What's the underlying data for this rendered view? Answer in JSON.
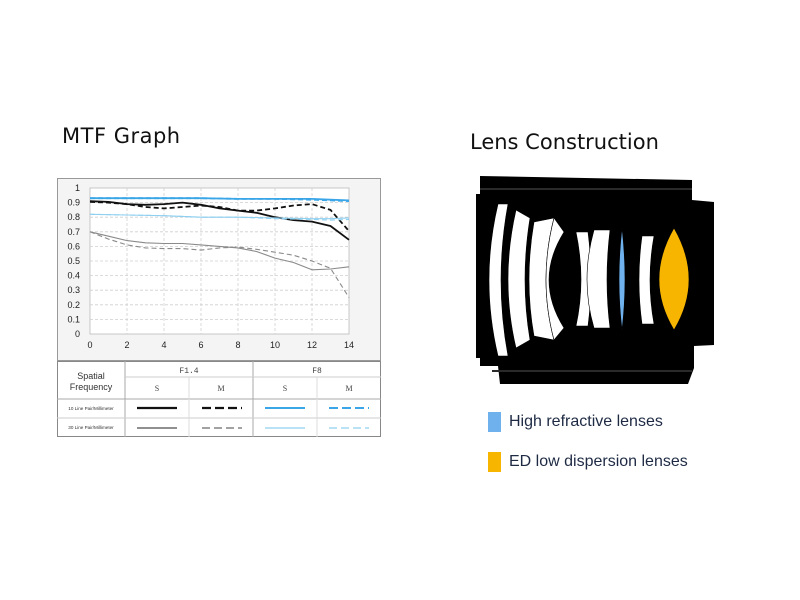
{
  "mtf_title": "MTF Graph",
  "lens_title": "Lens Construction",
  "colors": {
    "f14": "#111111",
    "f8": "#3aa6e8",
    "high_refractive": "#6fb1ec",
    "ed_low_dispersion": "#f7b500",
    "lens_body": "#000000"
  },
  "chart_data": {
    "type": "line",
    "xlim": [
      0,
      14
    ],
    "ylim": [
      0,
      1
    ],
    "x_ticks": [
      "0",
      "2",
      "4",
      "6",
      "8",
      "10",
      "12",
      "14"
    ],
    "y_ticks": [
      "0",
      "0.1",
      "0.2",
      "0.3",
      "0.4",
      "0.5",
      "0.6",
      "0.7",
      "0.8",
      "0.9",
      "1"
    ],
    "grid": true,
    "series": [
      {
        "aperture": "F1.4",
        "orientation": "S",
        "freq": "10 Line Pair/Millimeter",
        "color": "#111111",
        "dash": "solid",
        "weight": "bold",
        "x": [
          0,
          1,
          2,
          3,
          4,
          5,
          6,
          7,
          8,
          9,
          10,
          11,
          12,
          13,
          14
        ],
        "y": [
          0.91,
          0.905,
          0.89,
          0.885,
          0.89,
          0.9,
          0.885,
          0.86,
          0.845,
          0.83,
          0.8,
          0.78,
          0.77,
          0.74,
          0.645
        ]
      },
      {
        "aperture": "F1.4",
        "orientation": "M",
        "freq": "10 Line Pair/Millimeter",
        "color": "#111111",
        "dash": "dashed",
        "weight": "bold",
        "x": [
          0,
          1,
          2,
          3,
          4,
          5,
          6,
          7,
          8,
          9,
          10,
          11,
          12,
          13,
          14
        ],
        "y": [
          0.905,
          0.9,
          0.89,
          0.87,
          0.86,
          0.87,
          0.88,
          0.87,
          0.845,
          0.845,
          0.86,
          0.88,
          0.89,
          0.85,
          0.705
        ]
      },
      {
        "aperture": "F8",
        "orientation": "S",
        "freq": "10 Line Pair/Millimeter",
        "color": "#3aa6e8",
        "dash": "solid",
        "weight": "bold",
        "x": [
          0,
          2,
          4,
          6,
          8,
          10,
          12,
          13,
          14
        ],
        "y": [
          0.93,
          0.93,
          0.93,
          0.93,
          0.925,
          0.925,
          0.925,
          0.92,
          0.915
        ]
      },
      {
        "aperture": "F8",
        "orientation": "M",
        "freq": "10 Line Pair/Millimeter",
        "color": "#3aa6e8",
        "dash": "dashed",
        "weight": "bold",
        "x": [
          0,
          2,
          4,
          6,
          8,
          10,
          12,
          13,
          14
        ],
        "y": [
          0.93,
          0.93,
          0.93,
          0.93,
          0.925,
          0.925,
          0.92,
          0.915,
          0.91
        ]
      },
      {
        "aperture": "F1.4",
        "orientation": "S",
        "freq": "30 Line Pair/Millimeter",
        "color": "#8a8a8a",
        "dash": "solid",
        "weight": "thin",
        "x": [
          0,
          1,
          2,
          3,
          4,
          5,
          6,
          7,
          8,
          9,
          10,
          11,
          12,
          13,
          14
        ],
        "y": [
          0.7,
          0.67,
          0.64,
          0.625,
          0.62,
          0.62,
          0.61,
          0.6,
          0.59,
          0.565,
          0.52,
          0.49,
          0.44,
          0.445,
          0.46
        ]
      },
      {
        "aperture": "F1.4",
        "orientation": "M",
        "freq": "30 Line Pair/Millimeter",
        "color": "#8a8a8a",
        "dash": "dashed",
        "weight": "thin",
        "x": [
          0,
          1,
          2,
          3,
          4,
          5,
          6,
          7,
          8,
          9,
          10,
          11,
          12,
          13,
          14
        ],
        "y": [
          0.7,
          0.65,
          0.61,
          0.59,
          0.585,
          0.585,
          0.575,
          0.59,
          0.595,
          0.58,
          0.56,
          0.54,
          0.5,
          0.45,
          0.25
        ]
      },
      {
        "aperture": "F8",
        "orientation": "S",
        "freq": "30 Line Pair/Millimeter",
        "color": "#8fd0f0",
        "dash": "solid",
        "weight": "thin",
        "x": [
          0,
          2,
          4,
          6,
          8,
          10,
          12,
          13,
          14
        ],
        "y": [
          0.82,
          0.815,
          0.81,
          0.8,
          0.8,
          0.795,
          0.79,
          0.79,
          0.795
        ]
      },
      {
        "aperture": "F8",
        "orientation": "M",
        "freq": "30 Line Pair/Millimeter",
        "color": "#8fd0f0",
        "dash": "dashed",
        "weight": "thin",
        "x": [
          0,
          2,
          4,
          6,
          8,
          10,
          12,
          13,
          14
        ],
        "y": [
          0.82,
          0.815,
          0.81,
          0.8,
          0.8,
          0.79,
          0.785,
          0.78,
          0.785
        ]
      }
    ]
  },
  "table": {
    "header_col": "Spatial Frequency",
    "apertures": [
      "F1.4",
      "F8"
    ],
    "orientations": [
      "S",
      "M",
      "S",
      "M"
    ],
    "rows": [
      "10 Line Pair/Millimeter",
      "30 Line Pair/Millimeter"
    ]
  },
  "legend": [
    {
      "label": "High refractive lenses",
      "color": "#6fb1ec"
    },
    {
      "label": "ED low dispersion lenses",
      "color": "#f7b500"
    }
  ]
}
